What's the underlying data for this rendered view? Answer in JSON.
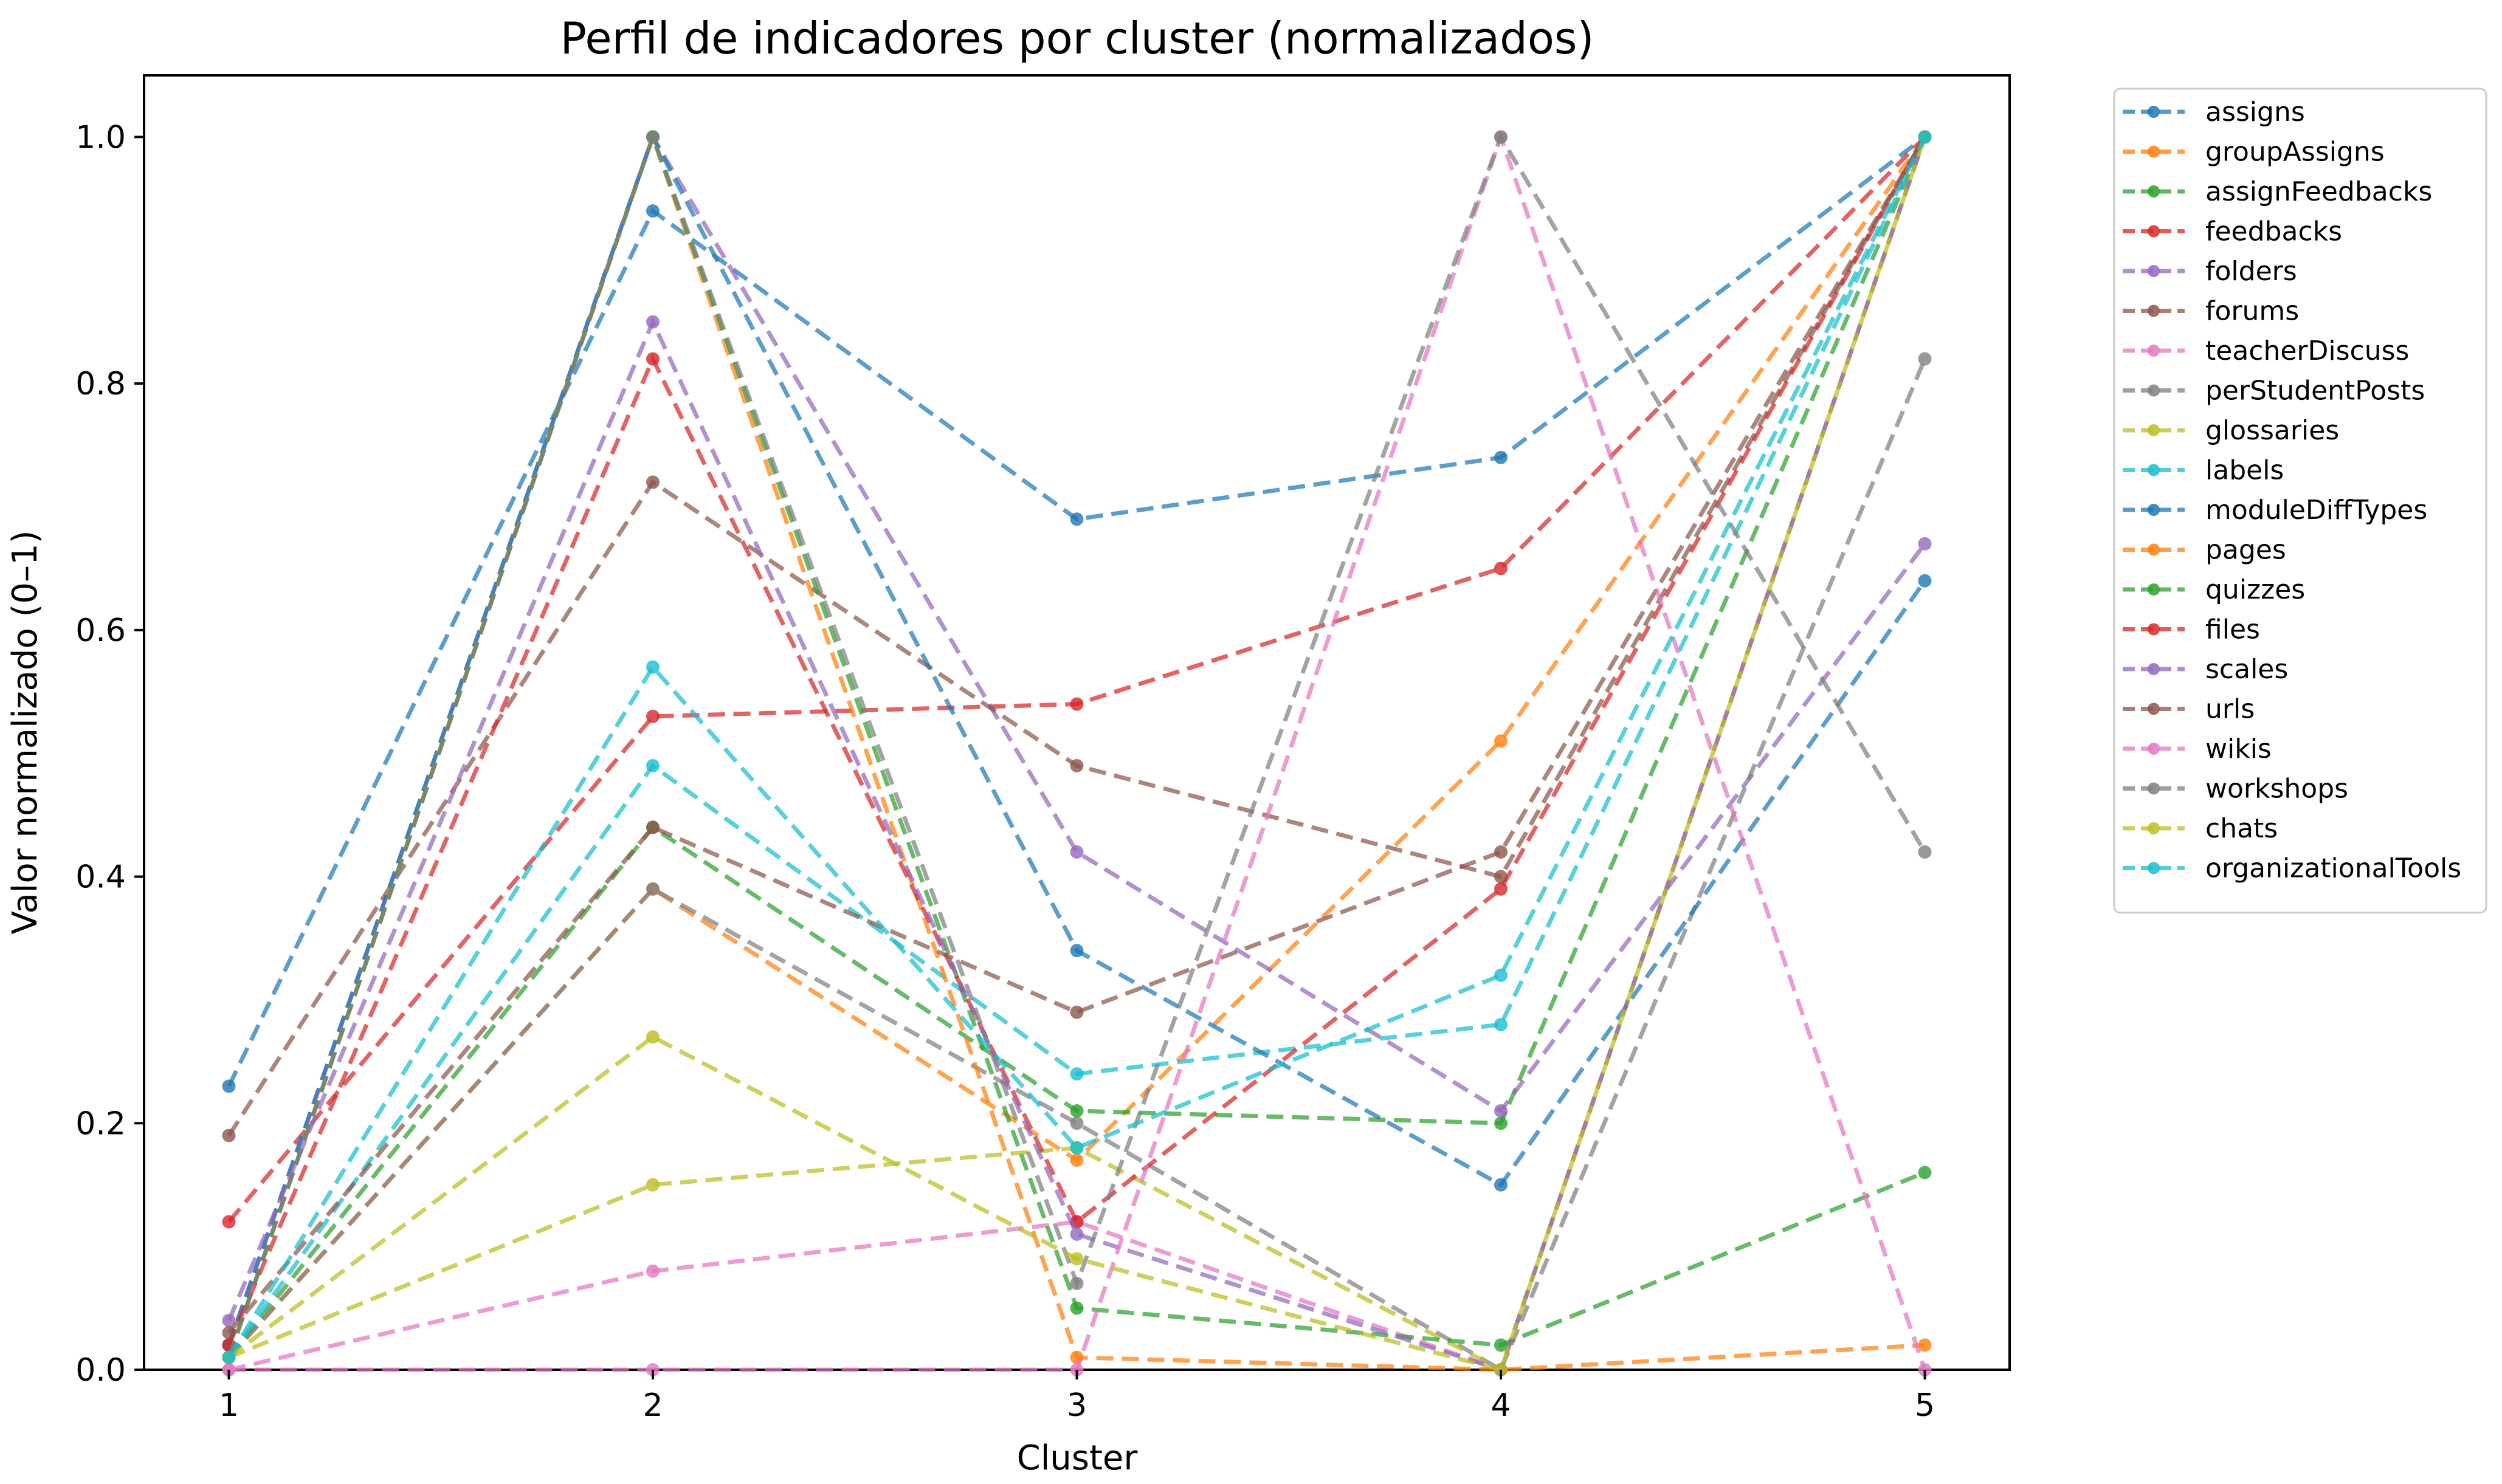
{
  "chart_data": {
    "type": "line",
    "title": "Perfil de indicadores por cluster (normalizados)",
    "xlabel": "Cluster",
    "ylabel": "Valor normalizado (0–1)",
    "x": [
      1,
      2,
      3,
      4,
      5
    ],
    "xticks": [
      "1",
      "2",
      "3",
      "4",
      "5"
    ],
    "xlim": [
      0.8,
      5.2
    ],
    "ylim": [
      0,
      1.05
    ],
    "yticks": [
      "0.0",
      "0.2",
      "0.4",
      "0.6",
      "0.8",
      "1.0"
    ],
    "grid": false,
    "legend_position": "outside-right",
    "line_style": "dashed",
    "series": [
      {
        "name": "assigns",
        "color": "#1f77b4",
        "values": [
          0.23,
          0.94,
          0.69,
          0.74,
          1.0
        ]
      },
      {
        "name": "groupAssigns",
        "color": "#ff7f0e",
        "values": [
          0.01,
          0.39,
          0.17,
          0.51,
          1.0
        ]
      },
      {
        "name": "assignFeedbacks",
        "color": "#2ca02c",
        "values": [
          0.01,
          0.44,
          0.21,
          0.2,
          1.0
        ]
      },
      {
        "name": "feedbacks",
        "color": "#d62728",
        "values": [
          0.12,
          0.53,
          0.54,
          0.65,
          1.0
        ]
      },
      {
        "name": "folders",
        "color": "#9467bd",
        "values": [
          0.02,
          1.0,
          0.42,
          0.21,
          0.67
        ]
      },
      {
        "name": "forums",
        "color": "#8c564b",
        "values": [
          0.19,
          0.72,
          0.49,
          0.4,
          1.0
        ]
      },
      {
        "name": "teacherDiscuss",
        "color": "#e377c2",
        "values": [
          0.0,
          0.08,
          0.12,
          0.0,
          1.0
        ]
      },
      {
        "name": "perStudentPosts",
        "color": "#7f7f7f",
        "values": [
          0.01,
          0.39,
          0.2,
          0.0,
          0.82
        ]
      },
      {
        "name": "glossaries",
        "color": "#bcbd22",
        "values": [
          0.01,
          0.15,
          0.18,
          0.0,
          1.0
        ]
      },
      {
        "name": "labels",
        "color": "#17becf",
        "values": [
          0.01,
          0.49,
          0.24,
          0.28,
          1.0
        ]
      },
      {
        "name": "moduleDiffTypes",
        "color": "#1f77b4",
        "values": [
          0.02,
          1.0,
          0.34,
          0.15,
          0.64
        ]
      },
      {
        "name": "pages",
        "color": "#ff7f0e",
        "values": [
          0.01,
          1.0,
          0.01,
          0.0,
          0.02
        ]
      },
      {
        "name": "quizzes",
        "color": "#2ca02c",
        "values": [
          0.01,
          1.0,
          0.05,
          0.02,
          0.16
        ]
      },
      {
        "name": "files",
        "color": "#d62728",
        "values": [
          0.02,
          0.82,
          0.12,
          0.39,
          1.0
        ]
      },
      {
        "name": "scales",
        "color": "#9467bd",
        "values": [
          0.04,
          0.85,
          0.11,
          0.0,
          1.0
        ]
      },
      {
        "name": "urls",
        "color": "#8c564b",
        "values": [
          0.03,
          0.44,
          0.29,
          0.42,
          1.0
        ]
      },
      {
        "name": "wikis",
        "color": "#e377c2",
        "values": [
          0.0,
          0.0,
          0.0,
          1.0,
          0.0
        ]
      },
      {
        "name": "workshops",
        "color": "#7f7f7f",
        "values": [
          0.01,
          1.0,
          0.07,
          1.0,
          0.42
        ]
      },
      {
        "name": "chats",
        "color": "#bcbd22",
        "values": [
          0.01,
          0.27,
          0.09,
          0.0,
          1.0
        ]
      },
      {
        "name": "organizationalTools",
        "color": "#17becf",
        "values": [
          0.01,
          0.57,
          0.18,
          0.32,
          1.0
        ]
      }
    ]
  }
}
